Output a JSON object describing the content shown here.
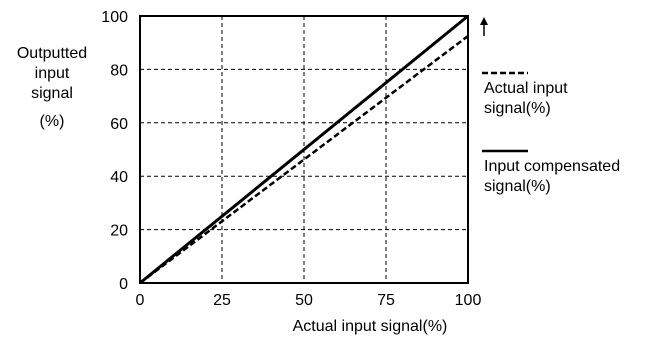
{
  "chart_data": {
    "type": "line",
    "xlabel": "Actual input signal(%)",
    "ylabel_lines": [
      "Outputted",
      "input",
      "signal",
      "(%)"
    ],
    "xlim": [
      0,
      100
    ],
    "ylim": [
      0,
      100
    ],
    "x_ticks": [
      "0",
      "25",
      "50",
      "75",
      "100"
    ],
    "y_ticks": [
      "0",
      "20",
      "40",
      "60",
      "80",
      "100"
    ],
    "grid": true,
    "grid_style": "dashed",
    "legend_placement": "right",
    "series": [
      {
        "name": "Actual input signal(%)",
        "name_lines": [
          "Actual input",
          "signal(%)"
        ],
        "line_style": "dashed",
        "x": [
          0,
          100
        ],
        "y": [
          0,
          92.5
        ]
      },
      {
        "name": "Input compensated signal(%)",
        "name_lines": [
          "Input compensated",
          "signal(%)"
        ],
        "line_style": "solid",
        "x": [
          0,
          100
        ],
        "y": [
          0,
          100
        ]
      }
    ]
  }
}
